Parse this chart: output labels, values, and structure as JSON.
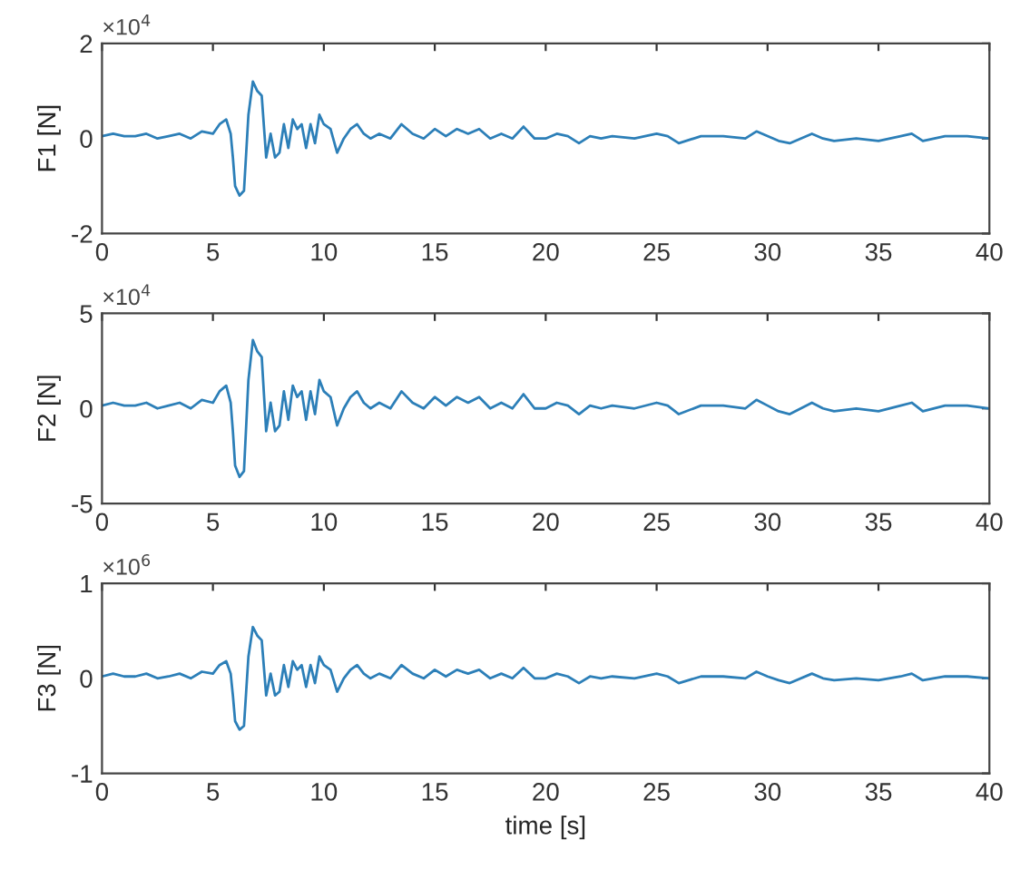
{
  "chart_data": [
    {
      "type": "line",
      "ylabel": "F1 [N]",
      "annotations": [
        "×10$^{4}$"
      ],
      "xlim": [
        0,
        40
      ],
      "xticks": [
        0,
        5,
        10,
        15,
        20,
        25,
        30,
        35,
        40
      ],
      "ylim": [
        -2,
        2
      ],
      "yticks": [
        -2,
        0,
        2
      ],
      "grid": false,
      "legend": false,
      "series": [
        {
          "color": "#2c7fb8",
          "x": [
            0,
            0.5,
            1,
            1.5,
            2,
            2.5,
            3,
            3.5,
            4,
            4.5,
            5,
            5.3,
            5.6,
            5.8,
            5.9,
            6.0,
            6.2,
            6.4,
            6.6,
            6.8,
            7.0,
            7.2,
            7.4,
            7.6,
            7.8,
            8.0,
            8.2,
            8.4,
            8.6,
            8.8,
            9.0,
            9.2,
            9.4,
            9.6,
            9.8,
            10.0,
            10.3,
            10.6,
            10.9,
            11.2,
            11.5,
            11.8,
            12.1,
            12.5,
            13,
            13.5,
            14,
            14.5,
            15,
            15.5,
            16,
            16.5,
            17,
            17.5,
            18,
            18.5,
            19,
            19.5,
            20,
            20.5,
            21,
            21.5,
            22,
            22.5,
            23,
            24,
            25,
            25.5,
            26,
            27,
            28,
            29,
            29.5,
            30,
            30.5,
            31,
            32,
            32.5,
            33,
            34,
            35,
            36,
            36.5,
            37,
            38,
            39,
            40
          ],
          "values": [
            0.05,
            0.1,
            0.05,
            0.05,
            0.1,
            0,
            0.05,
            0.1,
            0,
            0.15,
            0.1,
            0.3,
            0.4,
            0.1,
            -0.4,
            -1.0,
            -1.2,
            -1.1,
            0.5,
            1.2,
            1.0,
            0.9,
            -0.4,
            0.1,
            -0.4,
            -0.3,
            0.3,
            -0.2,
            0.4,
            0.2,
            0.3,
            -0.2,
            0.3,
            -0.1,
            0.5,
            0.3,
            0.2,
            -0.3,
            0,
            0.2,
            0.3,
            0.1,
            0,
            0.1,
            0,
            0.3,
            0.1,
            0,
            0.2,
            0.05,
            0.2,
            0.1,
            0.2,
            0,
            0.1,
            0,
            0.25,
            0,
            0,
            0.1,
            0.05,
            -0.1,
            0.05,
            0,
            0.05,
            0,
            0.1,
            0.05,
            -0.1,
            0.05,
            0.05,
            0,
            0.15,
            0.05,
            -0.05,
            -0.1,
            0.1,
            0,
            -0.05,
            0,
            -0.05,
            0.05,
            0.1,
            -0.05,
            0.05,
            0.05,
            0
          ]
        }
      ]
    },
    {
      "type": "line",
      "ylabel": "F2 [N]",
      "annotations": [
        "×10$^{4}$"
      ],
      "xlim": [
        0,
        40
      ],
      "xticks": [
        0,
        5,
        10,
        15,
        20,
        25,
        30,
        35,
        40
      ],
      "ylim": [
        -5,
        5
      ],
      "yticks": [
        -5,
        0,
        5
      ],
      "grid": false,
      "legend": false,
      "series": [
        {
          "color": "#2c7fb8",
          "x": [
            0,
            0.5,
            1,
            1.5,
            2,
            2.5,
            3,
            3.5,
            4,
            4.5,
            5,
            5.3,
            5.6,
            5.8,
            5.9,
            6.0,
            6.2,
            6.4,
            6.6,
            6.8,
            7.0,
            7.2,
            7.4,
            7.6,
            7.8,
            8.0,
            8.2,
            8.4,
            8.6,
            8.8,
            9.0,
            9.2,
            9.4,
            9.6,
            9.8,
            10.0,
            10.3,
            10.6,
            10.9,
            11.2,
            11.5,
            11.8,
            12.1,
            12.5,
            13,
            13.5,
            14,
            14.5,
            15,
            15.5,
            16,
            16.5,
            17,
            17.5,
            18,
            18.5,
            19,
            19.5,
            20,
            20.5,
            21,
            21.5,
            22,
            22.5,
            23,
            24,
            25,
            25.5,
            26,
            27,
            28,
            29,
            29.5,
            30,
            30.5,
            31,
            32,
            32.5,
            33,
            34,
            35,
            36,
            36.5,
            37,
            38,
            39,
            40
          ],
          "values": [
            0.15,
            0.3,
            0.15,
            0.15,
            0.3,
            0,
            0.15,
            0.3,
            0,
            0.45,
            0.3,
            0.9,
            1.2,
            0.3,
            -1.2,
            -3.0,
            -3.6,
            -3.3,
            1.5,
            3.6,
            3.0,
            2.7,
            -1.2,
            0.3,
            -1.2,
            -0.9,
            0.9,
            -0.6,
            1.2,
            0.6,
            0.9,
            -0.6,
            0.9,
            -0.3,
            1.5,
            0.9,
            0.6,
            -0.9,
            0,
            0.6,
            0.9,
            0.3,
            0,
            0.3,
            0,
            0.9,
            0.3,
            0,
            0.6,
            0.15,
            0.6,
            0.3,
            0.6,
            0,
            0.3,
            0,
            0.75,
            0,
            0,
            0.3,
            0.15,
            -0.3,
            0.15,
            0,
            0.15,
            0,
            0.3,
            0.15,
            -0.3,
            0.15,
            0.15,
            0,
            0.45,
            0.15,
            -0.15,
            -0.3,
            0.3,
            0,
            -0.15,
            0,
            -0.15,
            0.15,
            0.3,
            -0.15,
            0.15,
            0.15,
            0
          ]
        }
      ]
    },
    {
      "type": "line",
      "ylabel": "F3 [N]",
      "xlabel": "time [s]",
      "annotations": [
        "×10$^{6}$"
      ],
      "xlim": [
        0,
        40
      ],
      "xticks": [
        0,
        5,
        10,
        15,
        20,
        25,
        30,
        35,
        40
      ],
      "ylim": [
        -1,
        1
      ],
      "yticks": [
        -1,
        0,
        1
      ],
      "grid": false,
      "legend": false,
      "series": [
        {
          "color": "#2c7fb8",
          "x": [
            0,
            0.5,
            1,
            1.5,
            2,
            2.5,
            3,
            3.5,
            4,
            4.5,
            5,
            5.3,
            5.6,
            5.8,
            5.9,
            6.0,
            6.2,
            6.4,
            6.6,
            6.8,
            7.0,
            7.2,
            7.4,
            7.6,
            7.8,
            8.0,
            8.2,
            8.4,
            8.6,
            8.8,
            9.0,
            9.2,
            9.4,
            9.6,
            9.8,
            10.0,
            10.3,
            10.6,
            10.9,
            11.2,
            11.5,
            11.8,
            12.1,
            12.5,
            13,
            13.5,
            14,
            14.5,
            15,
            15.5,
            16,
            16.5,
            17,
            17.5,
            18,
            18.5,
            19,
            19.5,
            20,
            20.5,
            21,
            21.5,
            22,
            22.5,
            23,
            24,
            25,
            25.5,
            26,
            27,
            28,
            29,
            29.5,
            30,
            30.5,
            31,
            32,
            32.5,
            33,
            34,
            35,
            36,
            36.5,
            37,
            38,
            39,
            40
          ],
          "values": [
            0.02,
            0.05,
            0.02,
            0.02,
            0.05,
            0,
            0.02,
            0.05,
            0,
            0.07,
            0.05,
            0.14,
            0.18,
            0.05,
            -0.18,
            -0.45,
            -0.54,
            -0.5,
            0.23,
            0.54,
            0.45,
            0.4,
            -0.18,
            0.05,
            -0.18,
            -0.14,
            0.14,
            -0.09,
            0.18,
            0.09,
            0.14,
            -0.09,
            0.14,
            -0.05,
            0.23,
            0.14,
            0.09,
            -0.14,
            0,
            0.09,
            0.14,
            0.05,
            0,
            0.05,
            0,
            0.14,
            0.05,
            0,
            0.09,
            0.02,
            0.09,
            0.05,
            0.09,
            0,
            0.05,
            0,
            0.11,
            0,
            0,
            0.05,
            0.02,
            -0.05,
            0.02,
            0,
            0.02,
            0,
            0.05,
            0.02,
            -0.05,
            0.02,
            0.02,
            0,
            0.07,
            0.02,
            -0.02,
            -0.05,
            0.05,
            0,
            -0.02,
            0,
            -0.02,
            0.02,
            0.05,
            -0.02,
            0.02,
            0.02,
            0
          ]
        }
      ]
    }
  ]
}
